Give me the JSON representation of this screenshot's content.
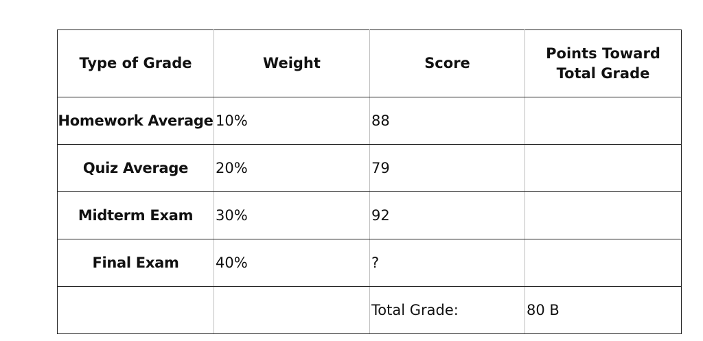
{
  "table": {
    "headers": {
      "type": "Type of Grade",
      "weight": "Weight",
      "score": "Score",
      "points_line1": "Points Toward",
      "points_line2": "Total Grade"
    },
    "rows": [
      {
        "type": "Homework Average",
        "weight": "10%",
        "score": "88",
        "points": ""
      },
      {
        "type": "Quiz Average",
        "weight": "20%",
        "score": "79",
        "points": ""
      },
      {
        "type": "Midterm Exam",
        "weight": "30%",
        "score": "92",
        "points": ""
      },
      {
        "type": "Final Exam",
        "weight": "40%",
        "score": "?",
        "points": ""
      }
    ],
    "total": {
      "type": "",
      "weight": "",
      "label": "Total Grade:",
      "value": "80 B"
    }
  }
}
